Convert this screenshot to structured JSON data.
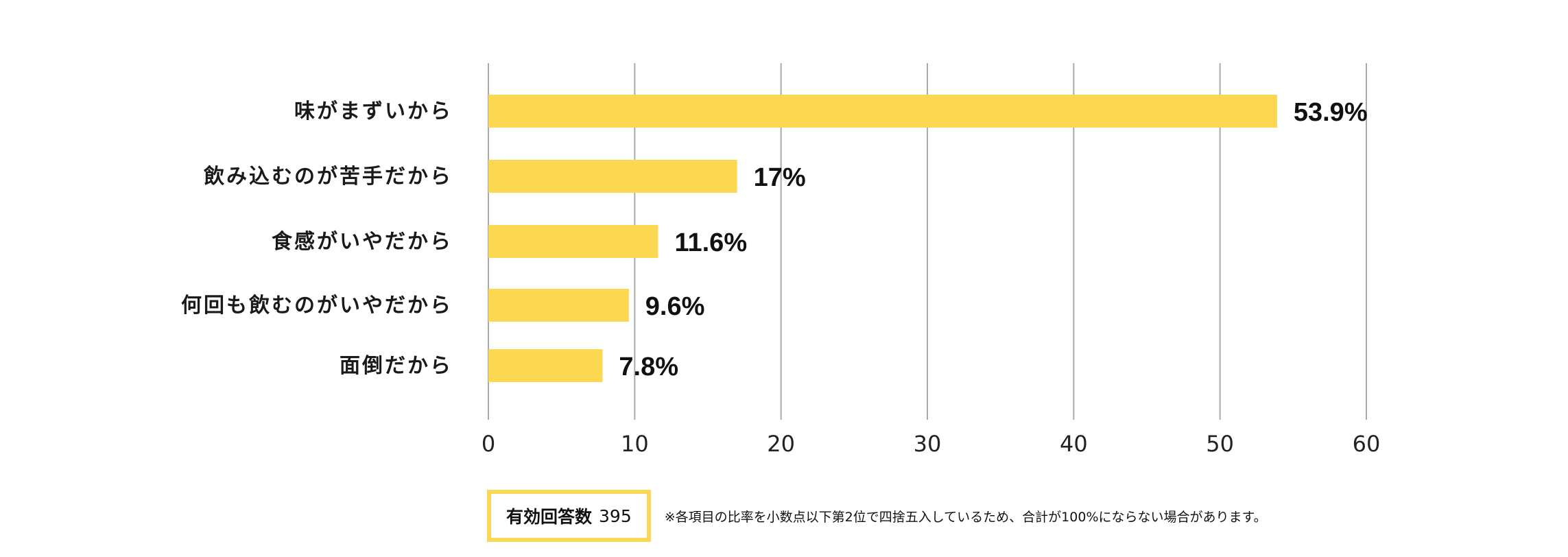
{
  "chart_data": {
    "type": "bar",
    "orientation": "horizontal",
    "categories": [
      "味がまずいから",
      "飲み込むのが苦手だから",
      "食感がいやだから",
      "何回も飲むのがいやだから",
      "面倒だから"
    ],
    "values": [
      53.9,
      17,
      11.6,
      9.6,
      7.8
    ],
    "value_labels": [
      "53.9%",
      "17%",
      "11.6%",
      "9.6%",
      "7.8%"
    ],
    "xlim": [
      0,
      60
    ],
    "xticks": [
      0,
      10,
      20,
      30,
      40,
      50,
      60
    ],
    "title": "",
    "xlabel": "",
    "ylabel": "",
    "grid": true,
    "bar_color": "#fcd752",
    "grid_color": "#aaaaaa"
  },
  "footer": {
    "respondents_label": "有効回答数",
    "respondents_value": "395",
    "note": "※各項目の比率を小数点以下第2位で四捨五入しているため、合計が100%にならない場合があります。",
    "badge_color": "#f9d857"
  }
}
